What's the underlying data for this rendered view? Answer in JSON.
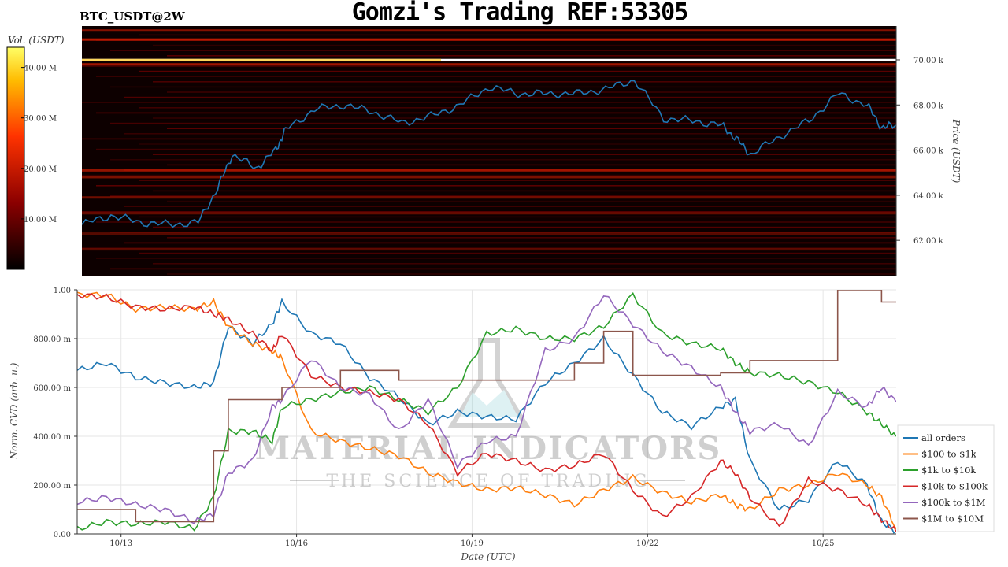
{
  "title": "Gomzi's Trading REF:53305",
  "pair_label": "BTC_USDT@2W",
  "watermark": {
    "line1": "MATERIAL INDICATORS",
    "line2": "THE SCIENCE OF TRADING"
  },
  "colorbar": {
    "label": "Vol. (USDT)",
    "ticks": [
      "10.00 M",
      "20.00 M",
      "30.00 M",
      "40.00 M"
    ]
  },
  "colors": {
    "price": "#1f77b4",
    "heat_bg": "#0d0000",
    "heat_line": "#8b0000",
    "hot_line": "#ffffff"
  },
  "chart_data": [
    {
      "type": "heatmap",
      "title": "Gomzi's Trading REF:53305",
      "ylabel": "Price (USDT)",
      "y_ticks": [
        "62.00 k",
        "64.00 k",
        "66.00 k",
        "68.00 k",
        "70.00 k"
      ],
      "ylim": [
        60400,
        71500
      ],
      "colorbar_label": "Vol. (USDT)",
      "colorbar_range": [
        0,
        44000000
      ],
      "series": [
        {
          "name": "price",
          "x": [
            "10/12 06:00",
            "10/12 18:00",
            "10/13 06:00",
            "10/13 18:00",
            "10/14 06:00",
            "10/14 14:00",
            "10/14 20:00",
            "10/15 06:00",
            "10/15 14:00",
            "10/15 18:00",
            "10/16 06:00",
            "10/16 18:00",
            "10/17 06:00",
            "10/17 18:00",
            "10/18 06:00",
            "10/18 18:00",
            "10/19 06:00",
            "10/19 18:00",
            "10/20 06:00",
            "10/20 18:00",
            "10/21 06:00",
            "10/21 18:00",
            "10/22 06:00",
            "10/22 18:00",
            "10/23 06:00",
            "10/23 12:00",
            "10/23 18:00",
            "10/24 06:00",
            "10/24 18:00",
            "10/25 06:00",
            "10/25 18:00",
            "10/26 00:00",
            "10/26 06:00"
          ],
          "y": [
            62700,
            63100,
            62800,
            62700,
            62800,
            64300,
            65800,
            65200,
            66000,
            66900,
            67800,
            68000,
            67700,
            67200,
            67500,
            68000,
            68800,
            68500,
            68500,
            68500,
            68700,
            69100,
            67400,
            67300,
            67100,
            66500,
            65800,
            66600,
            67300,
            68500,
            68000,
            67000,
            67100
          ]
        }
      ],
      "hot_level": 70000,
      "hot_volume": 42000000,
      "walls": [
        {
          "price": 69800,
          "volume": 12000000
        },
        {
          "price": 70900,
          "volume": 14000000
        },
        {
          "price": 71300,
          "volume": 9000000
        },
        {
          "price": 65100,
          "volume": 11000000
        },
        {
          "price": 64800,
          "volume": 9000000
        },
        {
          "price": 63900,
          "volume": 8000000
        },
        {
          "price": 63200,
          "volume": 7000000
        },
        {
          "price": 62300,
          "volume": 6000000
        },
        {
          "price": 61600,
          "volume": 6000000
        }
      ]
    },
    {
      "type": "line",
      "xlabel": "Date (UTC)",
      "ylabel": "Norm. CVD (arb. u.)",
      "x_ticks": [
        "10/13",
        "10/16",
        "10/19",
        "10/22",
        "10/25"
      ],
      "y_ticks": [
        "0.00",
        "200.00 m",
        "400.00 m",
        "600.00 m",
        "800.00 m",
        "1.00"
      ],
      "ylim": [
        0,
        1
      ],
      "grid": true,
      "legend": "right",
      "x": [
        "10/12 06:00",
        "10/12 18:00",
        "10/13 06:00",
        "10/13 18:00",
        "10/14 06:00",
        "10/14 14:00",
        "10/14 20:00",
        "10/15 06:00",
        "10/15 14:00",
        "10/15 18:00",
        "10/16 06:00",
        "10/16 18:00",
        "10/17 06:00",
        "10/17 18:00",
        "10/18 06:00",
        "10/18 18:00",
        "10/19 06:00",
        "10/19 18:00",
        "10/20 06:00",
        "10/20 18:00",
        "10/21 06:00",
        "10/21 18:00",
        "10/22 06:00",
        "10/22 18:00",
        "10/23 06:00",
        "10/23 12:00",
        "10/23 18:00",
        "10/24 06:00",
        "10/24 18:00",
        "10/25 06:00",
        "10/25 18:00",
        "10/26 00:00",
        "10/26 06:00"
      ],
      "series": [
        {
          "name": "all orders",
          "color": "#1f77b4",
          "values": [
            0.67,
            0.7,
            0.64,
            0.62,
            0.6,
            0.62,
            0.85,
            0.78,
            0.86,
            0.95,
            0.82,
            0.78,
            0.64,
            0.56,
            0.45,
            0.5,
            0.48,
            0.47,
            0.62,
            0.7,
            0.8,
            0.65,
            0.5,
            0.44,
            0.52,
            0.55,
            0.3,
            0.1,
            0.14,
            0.3,
            0.2,
            0.05,
            0.01
          ]
        },
        {
          "name": "$100 to $1k",
          "color": "#ff7f0e",
          "values": [
            0.98,
            0.98,
            0.92,
            0.93,
            0.92,
            0.95,
            0.85,
            0.78,
            0.75,
            0.72,
            0.42,
            0.38,
            0.35,
            0.32,
            0.25,
            0.21,
            0.18,
            0.19,
            0.16,
            0.12,
            0.18,
            0.23,
            0.17,
            0.13,
            0.16,
            0.12,
            0.1,
            0.18,
            0.2,
            0.25,
            0.2,
            0.15,
            0.02
          ]
        },
        {
          "name": "$1k to $10k",
          "color": "#2ca02c",
          "values": [
            0.02,
            0.05,
            0.04,
            0.05,
            0.02,
            0.15,
            0.42,
            0.42,
            0.38,
            0.52,
            0.55,
            0.58,
            0.6,
            0.55,
            0.5,
            0.6,
            0.82,
            0.84,
            0.8,
            0.8,
            0.85,
            0.98,
            0.82,
            0.78,
            0.76,
            0.7,
            0.66,
            0.65,
            0.62,
            0.58,
            0.5,
            0.45,
            0.4
          ]
        },
        {
          "name": "$10k to $100k",
          "color": "#d62728",
          "values": [
            0.98,
            0.97,
            0.93,
            0.92,
            0.93,
            0.9,
            0.88,
            0.82,
            0.75,
            0.82,
            0.65,
            0.6,
            0.58,
            0.55,
            0.45,
            0.25,
            0.33,
            0.3,
            0.26,
            0.28,
            0.33,
            0.18,
            0.07,
            0.15,
            0.3,
            0.25,
            0.15,
            0.03,
            0.22,
            0.18,
            0.12,
            0.06,
            0.01
          ]
        },
        {
          "name": "$100k to $1M",
          "color": "#9467bd",
          "values": [
            0.13,
            0.15,
            0.12,
            0.1,
            0.05,
            0.08,
            0.25,
            0.3,
            0.52,
            0.55,
            0.72,
            0.6,
            0.57,
            0.42,
            0.55,
            0.28,
            0.38,
            0.4,
            0.75,
            0.8,
            0.98,
            0.86,
            0.75,
            0.68,
            0.6,
            0.5,
            0.42,
            0.45,
            0.36,
            0.58,
            0.52,
            0.6,
            0.54
          ]
        },
        {
          "name": "$1M to $10M",
          "color": "#8c564b",
          "values": [
            0.1,
            0.1,
            0.05,
            0.05,
            0.05,
            0.34,
            0.55,
            0.55,
            0.55,
            0.6,
            0.6,
            0.67,
            0.67,
            0.63,
            0.63,
            0.63,
            0.63,
            0.63,
            0.63,
            0.7,
            0.83,
            0.65,
            0.65,
            0.65,
            0.66,
            0.66,
            0.71,
            0.71,
            0.71,
            1.0,
            1.0,
            0.95,
            0.95
          ]
        }
      ]
    }
  ]
}
